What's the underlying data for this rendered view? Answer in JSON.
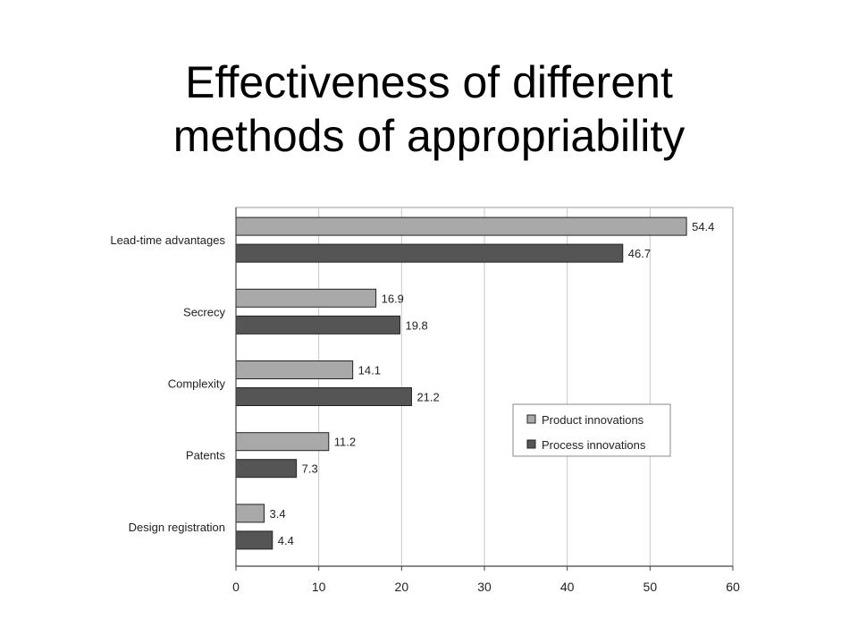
{
  "slide": {
    "title_line1": "Effectiveness of different",
    "title_line2": "methods of appropriability"
  },
  "chart_data": {
    "type": "bar",
    "orientation": "horizontal",
    "title": "Effectiveness of different methods of appropriability",
    "xlabel": "",
    "ylabel": "",
    "categories": [
      "Lead-time advantages",
      "Secrecy",
      "Complexity",
      "Patents",
      "Design registration"
    ],
    "series": [
      {
        "name": "Product innovations",
        "values": [
          54.4,
          16.9,
          14.1,
          11.2,
          3.4
        ],
        "color": "#a9a9a9"
      },
      {
        "name": "Process innovations",
        "values": [
          46.7,
          19.8,
          21.2,
          7.3,
          4.4
        ],
        "color": "#555555"
      }
    ],
    "xlim": [
      0,
      60
    ],
    "xticks": [
      0,
      10,
      20,
      30,
      40,
      50,
      60
    ],
    "grid": true,
    "legend_position": "right-middle",
    "value_labels": true
  }
}
